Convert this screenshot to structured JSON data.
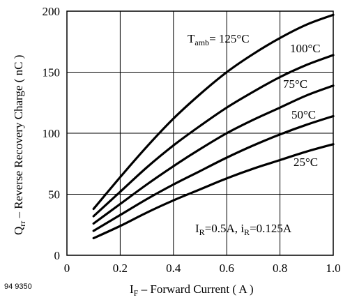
{
  "chart_data": {
    "type": "line",
    "ylabel_main": "Q",
    "ylabel_sub": "rr",
    "ylabel_rest": " – Reverse Recovery Charge ( nC )",
    "xlabel_main": "I",
    "xlabel_sub": "F",
    "xlabel_rest": " – Forward Current ( A )",
    "figure_id": "94 9350",
    "condition": {
      "p1_main": "I",
      "p1_sub": "R",
      "p1_rest": "=0.5A, ",
      "p2_main": "i",
      "p2_sub": "R",
      "p2_rest": "=0.125A"
    },
    "xlim": [
      0,
      1.0
    ],
    "ylim": [
      0,
      200
    ],
    "xticks": [
      "0",
      "0.2",
      "0.4",
      "0.6",
      "0.8",
      "1.0"
    ],
    "yticks": [
      "0",
      "50",
      "100",
      "150",
      "200"
    ],
    "grid": true,
    "series": [
      {
        "name": "125°C",
        "name_prefix_main": "T",
        "name_prefix_sub": "amb",
        "name_prefix_rest": "= ",
        "x": [
          0.1,
          0.2,
          0.3,
          0.4,
          0.5,
          0.6,
          0.7,
          0.8,
          0.9,
          1.0
        ],
        "y": [
          38,
          64,
          89,
          112,
          132,
          150,
          165,
          178,
          189,
          197
        ]
      },
      {
        "name": "100°C",
        "x": [
          0.1,
          0.2,
          0.3,
          0.4,
          0.5,
          0.6,
          0.7,
          0.8,
          0.9,
          1.0
        ],
        "y": [
          32,
          52,
          72,
          90,
          106,
          121,
          134,
          146,
          156,
          164
        ]
      },
      {
        "name": "75°C",
        "x": [
          0.1,
          0.2,
          0.3,
          0.4,
          0.5,
          0.6,
          0.7,
          0.8,
          0.9,
          1.0
        ],
        "y": [
          26,
          42,
          58,
          73,
          87,
          100,
          111,
          121,
          131,
          139
        ]
      },
      {
        "name": "50°C",
        "x": [
          0.1,
          0.2,
          0.3,
          0.4,
          0.5,
          0.6,
          0.7,
          0.8,
          0.9,
          1.0
        ],
        "y": [
          20,
          33,
          46,
          58,
          69,
          80,
          90,
          99,
          107,
          114
        ]
      },
      {
        "name": "25°C",
        "x": [
          0.1,
          0.2,
          0.3,
          0.4,
          0.5,
          0.6,
          0.7,
          0.8,
          0.9,
          1.0
        ],
        "y": [
          14,
          24,
          35,
          45,
          54,
          63,
          71,
          78,
          85,
          91
        ]
      }
    ]
  }
}
